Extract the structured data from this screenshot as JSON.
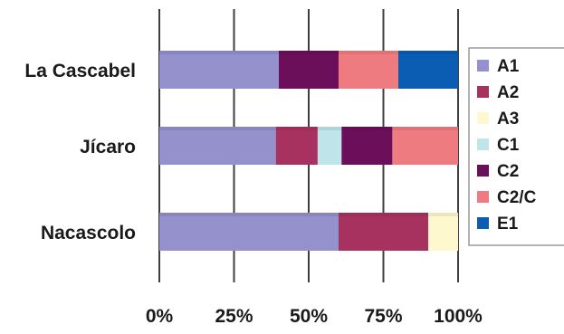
{
  "chart_data": {
    "type": "bar",
    "orientation": "horizontal",
    "stacked": true,
    "percent": true,
    "categories": [
      "La Cascabel",
      "Jícaro",
      "Nacascolo"
    ],
    "xlim": [
      0,
      100
    ],
    "ticks": [
      {
        "value": 0,
        "label": "0%"
      },
      {
        "value": 25,
        "label": "25%"
      },
      {
        "value": 50,
        "label": "50%"
      },
      {
        "value": 75,
        "label": "75%"
      },
      {
        "value": 100,
        "label": "100%"
      }
    ],
    "grid": "vertical",
    "legend": "right",
    "series": [
      {
        "name": "A1",
        "color": "#9491cc",
        "values": [
          40,
          39,
          60
        ]
      },
      {
        "name": "A2",
        "color": "#a8325f",
        "values": [
          0,
          14,
          30
        ]
      },
      {
        "name": "A3",
        "color": "#fdf8cd",
        "values": [
          0,
          0,
          10
        ]
      },
      {
        "name": "C1",
        "color": "#bfe5ea",
        "values": [
          0,
          8,
          0
        ]
      },
      {
        "name": "C2",
        "color": "#6b0f5b",
        "values": [
          20,
          17,
          0
        ]
      },
      {
        "name": "C2/C",
        "color": "#ee7b80",
        "values": [
          20,
          22,
          0
        ]
      },
      {
        "name": "E1",
        "color": "#0a5db3",
        "values": [
          20,
          0,
          0
        ]
      }
    ]
  }
}
